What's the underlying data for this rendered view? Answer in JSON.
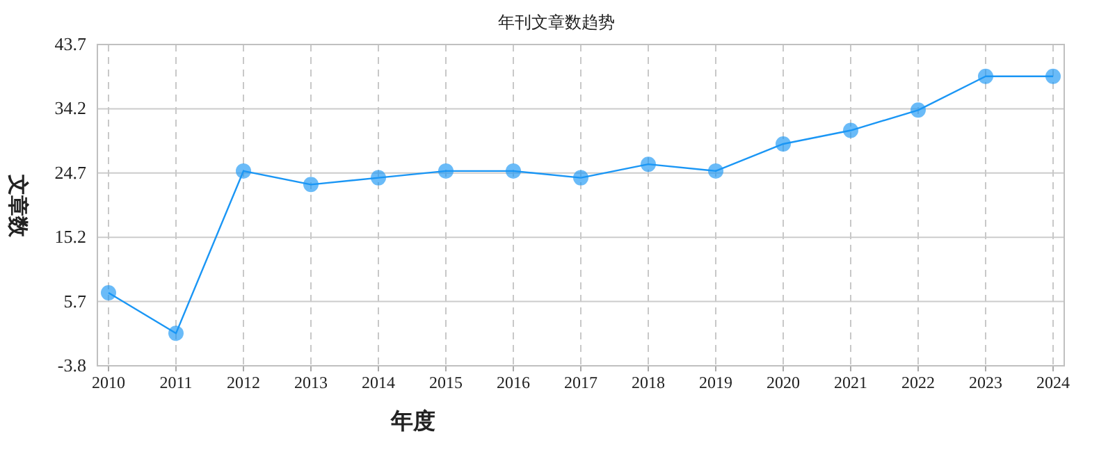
{
  "chart_data": {
    "type": "line",
    "title": "年刊文章数趋势",
    "xlabel": "年度",
    "ylabel": "文章数",
    "categories": [
      "2010",
      "2011",
      "2012",
      "2013",
      "2014",
      "2015",
      "2016",
      "2017",
      "2018",
      "2019",
      "2020",
      "2021",
      "2022",
      "2023",
      "2024"
    ],
    "series": [
      {
        "color": "#1a96f5",
        "values": [
          7,
          1,
          25,
          23,
          24,
          25,
          25,
          24,
          26,
          25,
          29,
          31,
          34,
          39,
          39
        ]
      }
    ],
    "ylim": [
      -3.8,
      43.7
    ],
    "yticks": [
      -3.8,
      5.7,
      15.2,
      24.7,
      34.2,
      43.7
    ],
    "grid": true,
    "marker": "circle"
  }
}
